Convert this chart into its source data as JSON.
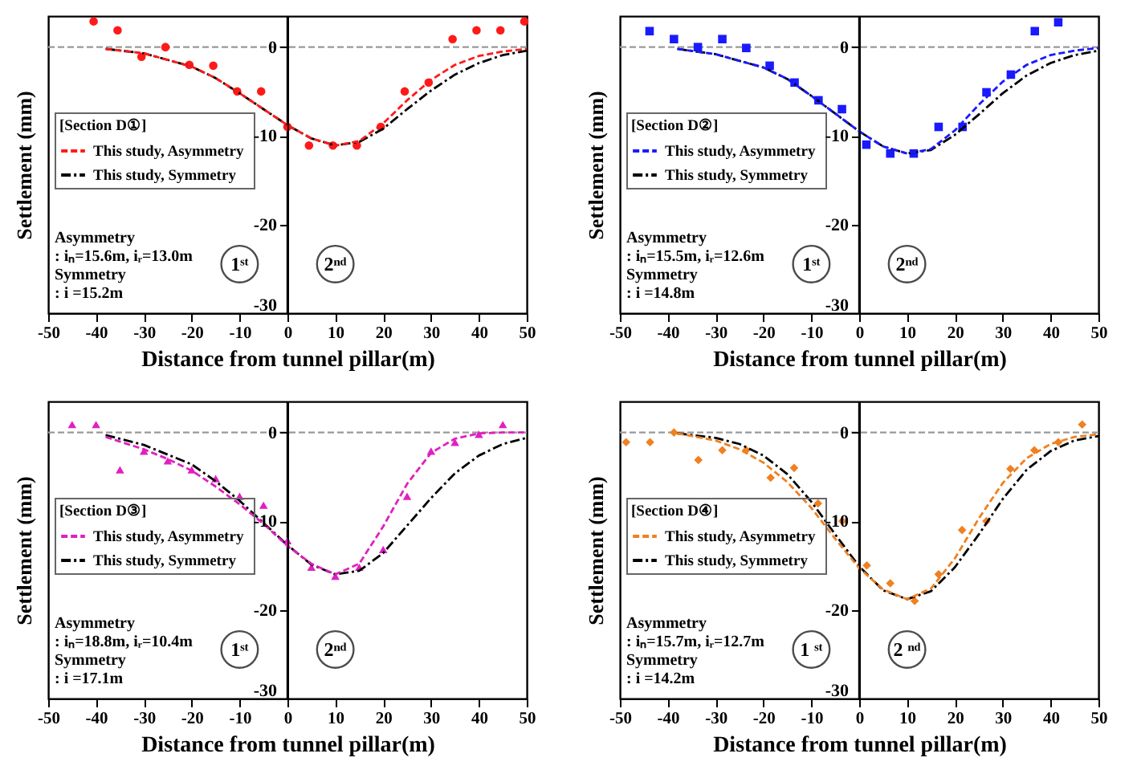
{
  "chart_data": [
    {
      "type": "line",
      "legend_title": "[Section D①]",
      "xlabel": "Distance from tunnel pillar(m)",
      "ylabel": "Settlement (mm)",
      "xlim": [
        -50,
        50
      ],
      "xticks": [
        -50,
        -40,
        -30,
        -20,
        -10,
        0,
        10,
        20,
        30,
        40,
        50
      ],
      "ylim": [
        -30,
        3.5
      ],
      "yticks": [
        -30,
        -20,
        -10,
        0
      ],
      "legend": "left",
      "ref_lines": [
        {
          "axis": "y",
          "value": 0,
          "color": "#999999",
          "line_style": "dashed"
        },
        {
          "axis": "x",
          "value": 0,
          "color": "#000000",
          "line_style": "solid"
        }
      ],
      "annotations": [
        "Asymmetry",
        " : iₙ=15.6m, iᵣ=13.0m",
        "Symmetry",
        " : i =15.2m",
        "1ˢᵗ",
        "2ⁿᵈ"
      ],
      "series": [
        {
          "type": "scatter",
          "marker": "circle",
          "color": "#ff1a1a",
          "x": [
            -40.5,
            -35.5,
            -30.5,
            -25.5,
            -20.5,
            -15.5,
            -10.5,
            -5.5,
            0,
            4.5,
            9.5,
            14.5,
            19.5,
            24.5,
            29.5,
            34.5,
            39.5,
            44.5,
            49.5
          ],
          "values": [
            2.9,
            1.9,
            -1.1,
            0,
            -2,
            -2.1,
            -5,
            -5,
            -9,
            -11.1,
            -11.1,
            -11.1,
            -9,
            -5,
            -4,
            0.9,
            1.9,
            1.9,
            2.9
          ]
        },
        {
          "name": "This study,  Asymmetry",
          "type": "line",
          "line_style": "dashed",
          "color": "#ff1a1a",
          "x": [
            -38,
            -30,
            -20,
            -15,
            -10,
            -5,
            0,
            5,
            10,
            15,
            20,
            25,
            30,
            35,
            40,
            45,
            50
          ],
          "values": [
            -0.2,
            -0.7,
            -2.2,
            -3.5,
            -5.2,
            -7,
            -8.8,
            -10.3,
            -11.1,
            -10.6,
            -8.6,
            -6,
            -3.7,
            -2,
            -1,
            -0.5,
            -0.2
          ]
        },
        {
          "name": "This study,  Symmetry",
          "type": "line",
          "line_style": "dotted",
          "color": "#000000",
          "x": [
            -38,
            -30,
            -20,
            -15,
            -10,
            -5,
            0,
            5,
            10,
            15,
            20,
            25,
            30,
            35,
            40,
            45,
            50
          ],
          "values": [
            -0.2,
            -0.7,
            -2.2,
            -3.5,
            -5.2,
            -7,
            -8.8,
            -10.3,
            -11.1,
            -10.7,
            -9.2,
            -7,
            -4.9,
            -3.1,
            -1.8,
            -0.9,
            -0.4
          ]
        }
      ]
    },
    {
      "type": "line",
      "legend_title": "[Section D②]",
      "xlabel": "Distance from tunnel pillar(m)",
      "ylabel": "Settlement (mm)",
      "xlim": [
        -50,
        50
      ],
      "xticks": [
        -50,
        -40,
        -30,
        -20,
        -10,
        0,
        10,
        20,
        30,
        40,
        50
      ],
      "ylim": [
        -30,
        3.5
      ],
      "yticks": [
        -30,
        -20,
        -10,
        0
      ],
      "legend": "left",
      "ref_lines": [
        {
          "axis": "y",
          "value": 0,
          "color": "#999999",
          "line_style": "dashed"
        },
        {
          "axis": "x",
          "value": 0,
          "color": "#000000",
          "line_style": "solid"
        }
      ],
      "annotations": [
        "Asymmetry",
        " : iₙ=15.5m, iᵣ=12.6m",
        "Symmetry",
        " : i =14.8m",
        "1ˢᵗ",
        "2ⁿᵈ"
      ],
      "series": [
        {
          "type": "scatter",
          "marker": "square",
          "color": "#1a1aff",
          "x": [
            -43.8,
            -38.7,
            -33.7,
            -28.6,
            -23.6,
            -18.7,
            -13.5,
            -8.5,
            -3.6,
            1.5,
            6.5,
            11.4,
            16.6,
            21.6,
            26.6,
            31.7,
            36.7,
            41.6
          ],
          "values": [
            1.8,
            0.9,
            0,
            0.9,
            -0.1,
            -2.1,
            -4,
            -6,
            -7,
            -11,
            -12,
            -12,
            -9,
            -9,
            -5.1,
            -3.1,
            1.8,
            2.8
          ]
        },
        {
          "name": "This study,  Asymmetry",
          "type": "line",
          "line_style": "dashed",
          "color": "#1a1aff",
          "x": [
            -38,
            -30,
            -20,
            -15,
            -10,
            -5,
            0,
            5,
            10,
            15,
            20,
            25,
            30,
            35,
            40,
            45,
            50
          ],
          "values": [
            -0.2,
            -0.8,
            -2.3,
            -3.6,
            -5.5,
            -7.5,
            -9.5,
            -11.2,
            -12,
            -11.5,
            -9.4,
            -6.5,
            -3.9,
            -2,
            -0.9,
            -0.4,
            -0.1
          ]
        },
        {
          "name": "This study,  Symmetry",
          "type": "line",
          "line_style": "dotted",
          "color": "#000000",
          "x": [
            -38,
            -30,
            -20,
            -15,
            -10,
            -5,
            0,
            5,
            10,
            15,
            20,
            25,
            30,
            35,
            40,
            45,
            50
          ],
          "values": [
            -0.2,
            -0.8,
            -2.3,
            -3.6,
            -5.5,
            -7.5,
            -9.5,
            -11.2,
            -12,
            -11.6,
            -9.9,
            -7.6,
            -5.2,
            -3.2,
            -1.8,
            -0.9,
            -0.4
          ]
        }
      ]
    },
    {
      "type": "line",
      "legend_title": "[Section D③]",
      "xlabel": "Distance from tunnel pillar(m)",
      "ylabel": "Settlement (mm)",
      "xlim": [
        -50,
        50
      ],
      "xticks": [
        -50,
        -40,
        -30,
        -20,
        -10,
        0,
        10,
        20,
        30,
        40,
        50
      ],
      "ylim": [
        -30,
        3.5
      ],
      "yticks": [
        -30,
        -20,
        -10,
        0
      ],
      "legend": "left",
      "ref_lines": [
        {
          "axis": "y",
          "value": 0,
          "color": "#999999",
          "line_style": "dashed"
        },
        {
          "axis": "x",
          "value": 0,
          "color": "#000000",
          "line_style": "solid"
        }
      ],
      "annotations": [
        "Asymmetry",
        " : iₙ=18.8m, iᵣ=10.4m",
        "Symmetry",
        " : i =17.1m",
        "1ˢᵗ",
        "2ⁿᵈ"
      ],
      "series": [
        {
          "type": "scatter",
          "marker": "triangle",
          "color": "#e020c0",
          "x": [
            -45,
            -40,
            -35,
            -30,
            -25,
            -20,
            -15,
            -10,
            -5,
            0,
            5,
            10,
            15,
            20,
            25,
            30,
            35,
            40,
            45
          ],
          "values": [
            0.9,
            0.9,
            -4.2,
            -2.1,
            -3.2,
            -4.2,
            -5.2,
            -7.2,
            -8.2,
            -12.2,
            -15.2,
            -16.2,
            -15.2,
            -13.2,
            -7.2,
            -2.1,
            -1.1,
            -0.2,
            0.9
          ]
        },
        {
          "name": "This study,  Asymmetry",
          "type": "line",
          "line_style": "dashed",
          "color": "#e020c0",
          "x": [
            -38,
            -30,
            -25,
            -20,
            -15,
            -10,
            -5,
            0,
            5,
            10,
            15,
            20,
            25,
            30,
            35,
            40,
            45,
            50
          ],
          "values": [
            -0.5,
            -1.9,
            -3,
            -4.3,
            -6.1,
            -8.1,
            -10.3,
            -12.8,
            -14.8,
            -16,
            -14.8,
            -10.6,
            -5.8,
            -2.3,
            -0.7,
            -0.1,
            0,
            0
          ]
        },
        {
          "name": "This study,  Symmetry",
          "type": "line",
          "line_style": "dotted",
          "color": "#000000",
          "x": [
            -38,
            -30,
            -20,
            -15,
            -10,
            -5,
            0,
            5,
            10,
            15,
            20,
            25,
            30,
            35,
            40,
            45,
            50
          ],
          "values": [
            -0.3,
            -1.4,
            -3.6,
            -5.5,
            -7.7,
            -10.2,
            -12.7,
            -14.9,
            -16,
            -15.6,
            -13.6,
            -10.5,
            -7.4,
            -4.6,
            -2.6,
            -1.3,
            -0.6
          ]
        }
      ]
    },
    {
      "type": "line",
      "legend_title": "[Section D④]",
      "xlabel": "Distance from tunnel pillar(m)",
      "ylabel": "Settlement (mm)",
      "xlim": [
        -50,
        50
      ],
      "xticks": [
        -50,
        -40,
        -30,
        -20,
        -10,
        0,
        10,
        20,
        30,
        40,
        50
      ],
      "ylim": [
        -30,
        3.5
      ],
      "yticks": [
        -30,
        -20,
        -10,
        0
      ],
      "legend": "left",
      "ref_lines": [
        {
          "axis": "y",
          "value": 0,
          "color": "#999999",
          "line_style": "dashed"
        },
        {
          "axis": "x",
          "value": 0,
          "color": "#000000",
          "line_style": "solid"
        }
      ],
      "annotations": [
        "Asymmetry",
        " : iₙ=15.7m, iᵣ=12.7m",
        "Symmetry",
        " : i =14.2m",
        "1 ˢᵗ",
        "2 ⁿᵈ"
      ],
      "series": [
        {
          "type": "scatter",
          "marker": "diamond",
          "color": "#f08020",
          "x": [
            -48.7,
            -43.7,
            -38.7,
            -33.6,
            -28.6,
            -23.6,
            -18.5,
            -13.6,
            -8.6,
            -3.5,
            1.6,
            6.5,
            11.6,
            16.6,
            21.5,
            26.6,
            31.6,
            36.6,
            41.6,
            46.6
          ],
          "values": [
            -1.1,
            -1.1,
            0,
            -3.1,
            -2,
            -2,
            -5.1,
            -4,
            -8,
            -10,
            -15,
            -17,
            -19,
            -16,
            -11,
            -10,
            -4.1,
            -2,
            -1.1,
            0.9
          ]
        },
        {
          "name": "This study,  Asymmetry",
          "type": "line",
          "line_style": "dashed",
          "color": "#f08020",
          "x": [
            -38,
            -30,
            -25,
            -20,
            -15,
            -10,
            -5,
            0,
            5,
            10,
            15,
            20,
            25,
            30,
            35,
            40,
            45,
            50
          ],
          "values": [
            -0.1,
            -0.9,
            -1.9,
            -3.4,
            -5.6,
            -8.5,
            -12,
            -15.3,
            -17.7,
            -18.8,
            -17.6,
            -14.2,
            -9.7,
            -5.7,
            -2.9,
            -1.3,
            -0.5,
            -0.2
          ]
        },
        {
          "name": "This study,  Symmetry",
          "type": "line",
          "line_style": "dotted",
          "color": "#000000",
          "x": [
            -38,
            -30,
            -25,
            -20,
            -15,
            -10,
            -5,
            0,
            5,
            10,
            15,
            20,
            25,
            30,
            35,
            40,
            45,
            50
          ],
          "values": [
            -0.1,
            -0.6,
            -1.3,
            -2.6,
            -4.7,
            -7.8,
            -11.5,
            -15.1,
            -17.8,
            -18.8,
            -17.9,
            -15.2,
            -11.5,
            -7.5,
            -4.2,
            -2.1,
            -0.9,
            -0.4
          ]
        }
      ]
    }
  ]
}
